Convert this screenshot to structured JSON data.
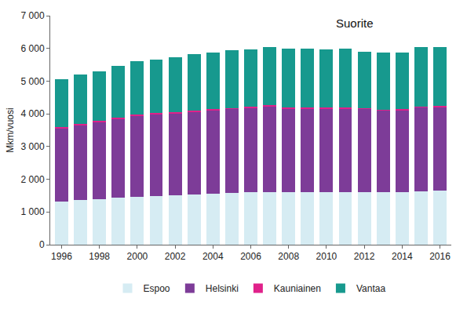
{
  "chart_data": {
    "type": "bar",
    "title": "Suorite",
    "y_label": "Mkm/vuosi",
    "stacked": true,
    "grid": false,
    "legend": "bottom",
    "x": [
      1996,
      1997,
      1998,
      1999,
      2000,
      2001,
      2002,
      2003,
      2004,
      2005,
      2006,
      2007,
      2008,
      2009,
      2010,
      2011,
      2012,
      2013,
      2014,
      2015,
      2016
    ],
    "xlim": [
      1995.4,
      2016.6
    ],
    "xticks": [
      1996,
      1998,
      2000,
      2002,
      2004,
      2006,
      2008,
      2010,
      2012,
      2014,
      2016
    ],
    "ylim": [
      0,
      7000
    ],
    "yticks": [
      0,
      {
        "value": 1000,
        "label": "1 000"
      },
      {
        "value": 2000,
        "label": "2 000"
      },
      {
        "value": 3000,
        "label": "3 000"
      },
      {
        "value": 4000,
        "label": "4 000"
      },
      {
        "value": 5000,
        "label": "5 000"
      },
      {
        "value": 6000,
        "label": "6 000"
      },
      {
        "value": 7000,
        "label": "7 000"
      }
    ],
    "series": [
      {
        "name": "Espoo",
        "color": "#d6ecf3",
        "values": [
          1320,
          1360,
          1390,
          1440,
          1470,
          1490,
          1510,
          1540,
          1560,
          1580,
          1600,
          1610,
          1610,
          1610,
          1610,
          1610,
          1610,
          1600,
          1610,
          1630,
          1650
        ]
      },
      {
        "name": "Helsinki",
        "color": "#7d3c98",
        "values": [
          2250,
          2290,
          2360,
          2410,
          2480,
          2500,
          2510,
          2530,
          2550,
          2570,
          2580,
          2620,
          2560,
          2560,
          2560,
          2560,
          2540,
          2500,
          2510,
          2570,
          2560
        ]
      },
      {
        "name": "Kauniainen",
        "color": "#e0218a",
        "values": [
          30,
          30,
          30,
          30,
          30,
          30,
          30,
          30,
          30,
          30,
          30,
          30,
          30,
          30,
          30,
          30,
          30,
          30,
          30,
          30,
          30
        ]
      },
      {
        "name": "Vantaa",
        "color": "#17998e",
        "values": [
          1470,
          1520,
          1520,
          1580,
          1620,
          1640,
          1680,
          1720,
          1740,
          1770,
          1750,
          1790,
          1800,
          1790,
          1770,
          1790,
          1720,
          1740,
          1720,
          1800,
          1810
        ]
      }
    ]
  }
}
